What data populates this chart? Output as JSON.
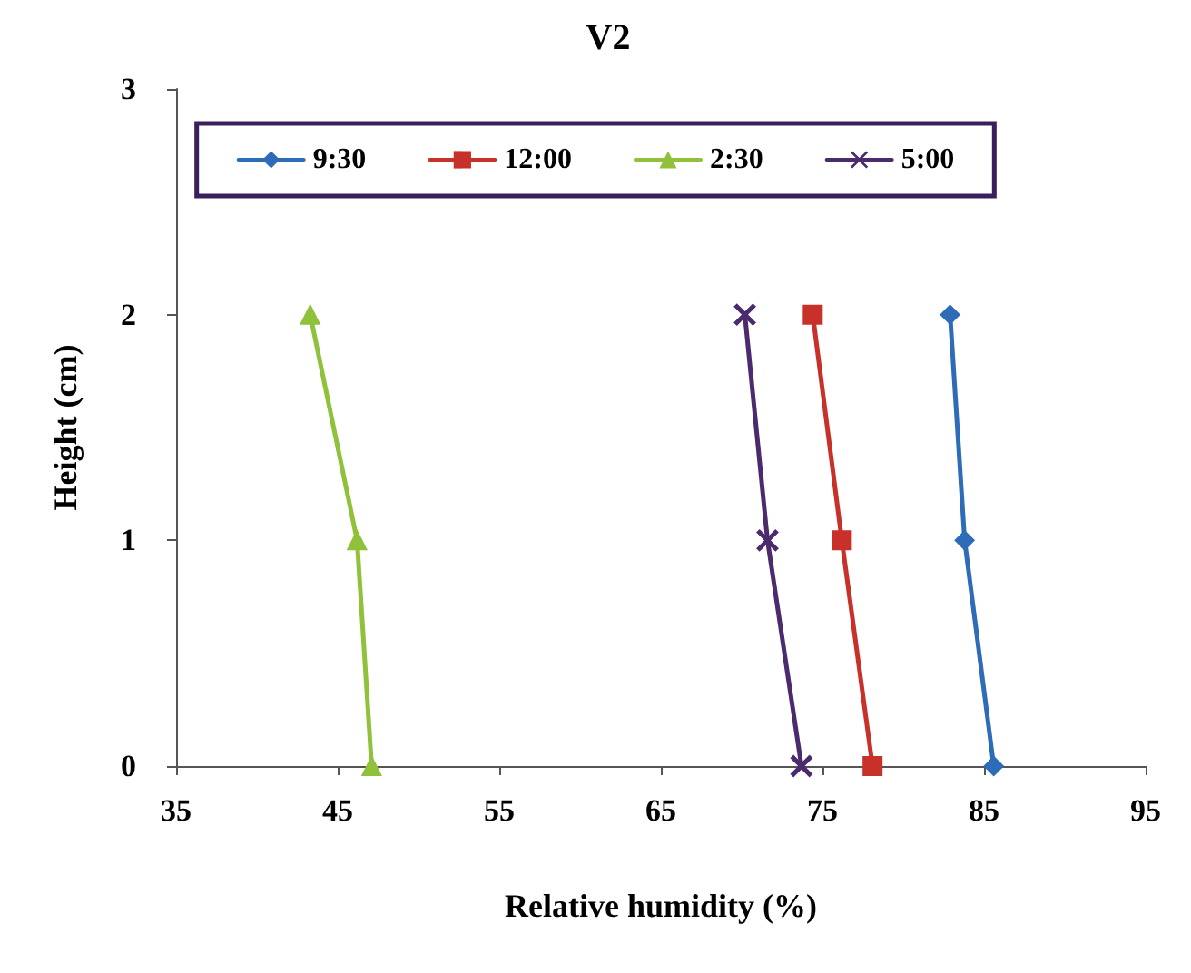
{
  "chart_data": {
    "type": "line",
    "title": "V2",
    "xlabel": "Relative humidity (%)",
    "ylabel": "Height (cm)",
    "xlim": [
      35,
      95
    ],
    "xticks": [
      35,
      45,
      55,
      65,
      75,
      85,
      95
    ],
    "ylim": [
      0,
      3
    ],
    "yticks": [
      0,
      1,
      2,
      3
    ],
    "grid": false,
    "legend": "top",
    "series": [
      {
        "name": "9:30",
        "color": "#2e6bb8",
        "marker": "diamond",
        "x": [
          85.6,
          83.8,
          82.9
        ],
        "values": [
          0,
          1,
          2
        ]
      },
      {
        "name": "12:00",
        "color": "#c8302a",
        "marker": "square",
        "x": [
          78.1,
          76.2,
          74.4
        ],
        "values": [
          0,
          1,
          2
        ]
      },
      {
        "name": "2:30",
        "color": "#8fc13a",
        "marker": "triangle",
        "x": [
          47.1,
          46.2,
          43.3
        ],
        "values": [
          0,
          1,
          2
        ]
      },
      {
        "name": "5:00",
        "color": "#4b2b6e",
        "marker": "cross",
        "x": [
          73.7,
          71.6,
          70.2
        ],
        "values": [
          0,
          1,
          2
        ]
      }
    ]
  }
}
